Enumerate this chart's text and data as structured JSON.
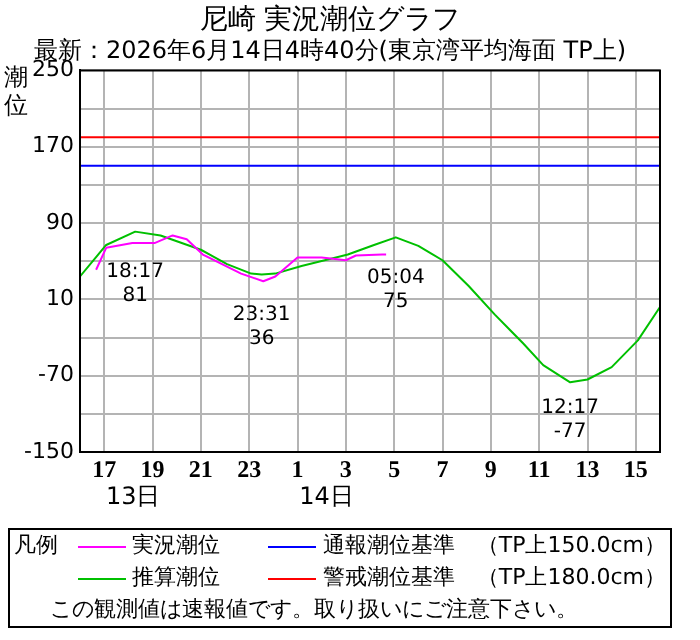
{
  "chart_data": {
    "type": "line",
    "title": "尼崎 実況潮位グラフ",
    "subtitle": "最新：2026年6月14日4時40分(東京湾平均海面 TP上)",
    "ylabel": "潮位",
    "xlim": [
      "2026-06-13T16:00",
      "2026-06-14T16:00"
    ],
    "legend_title": "凡例",
    "xticks": [
      {
        "value": "2026-06-13T17:00",
        "label": "17"
      },
      {
        "value": "2026-06-13T19:00",
        "label": "19"
      },
      {
        "value": "2026-06-13T21:00",
        "label": "21"
      },
      {
        "value": "2026-06-13T23:00",
        "label": "23"
      },
      {
        "value": "2026-06-14T01:00",
        "label": "1"
      },
      {
        "value": "2026-06-14T03:00",
        "label": "3"
      },
      {
        "value": "2026-06-14T05:00",
        "label": "5"
      },
      {
        "value": "2026-06-14T07:00",
        "label": "7"
      },
      {
        "value": "2026-06-14T09:00",
        "label": "9"
      },
      {
        "value": "2026-06-14T11:00",
        "label": "11"
      },
      {
        "value": "2026-06-14T13:00",
        "label": "13"
      },
      {
        "value": "2026-06-14T15:00",
        "label": "15"
      }
    ],
    "ylim": [
      -150,
      250
    ],
    "yticks": [
      -150,
      {
        "value": -110,
        "label": null
      },
      -70,
      {
        "value": -30,
        "label": null
      },
      10,
      {
        "value": 50,
        "label": null
      },
      90,
      {
        "value": 130,
        "label": null
      },
      170,
      {
        "value": 210,
        "label": null
      },
      250
    ],
    "grid": true,
    "legend": "bottom",
    "marker": "none",
    "line_style": "solid",
    "series": [
      {
        "name": "実況潮位",
        "color": "#ff00ff",
        "x": [
          "2026-06-13T16:40",
          "2026-06-13T17:05",
          "2026-06-13T18:10",
          "2026-06-13T19:05",
          "2026-06-13T19:50",
          "2026-06-13T20:25",
          "2026-06-13T21:05",
          "2026-06-13T22:40",
          "2026-06-13T23:35",
          "2026-06-14T00:05",
          "2026-06-14T01:00",
          "2026-06-14T02:00",
          "2026-06-14T03:00",
          "2026-06-14T03:25",
          "2026-06-14T04:30",
          "2026-06-14T04:40"
        ],
        "values": [
          41,
          64,
          69,
          69,
          77,
          73,
          57,
          37,
          29,
          34,
          54,
          54,
          51,
          56,
          57,
          57
        ]
      },
      {
        "name": "推算潮位",
        "color": "#00c000",
        "x": [
          "2026-06-13T16:00",
          "2026-06-13T17:05",
          "2026-06-13T18:17",
          "2026-06-13T19:20",
          "2026-06-13T21:00",
          "2026-06-13T22:05",
          "2026-06-13T23:05",
          "2026-06-13T23:31",
          "2026-06-14T00:05",
          "2026-06-14T01:10",
          "2026-06-14T03:05",
          "2026-06-14T04:10",
          "2026-06-14T05:04",
          "2026-06-14T06:00",
          "2026-06-14T07:00",
          "2026-06-14T08:05",
          "2026-06-14T09:10",
          "2026-06-14T10:20",
          "2026-06-14T11:10",
          "2026-06-14T12:17",
          "2026-06-14T13:00",
          "2026-06-14T14:00",
          "2026-06-14T15:05",
          "2026-06-14T16:00"
        ],
        "values": [
          34,
          67,
          81,
          77,
          62,
          47,
          37,
          36,
          37,
          45,
          57,
          67,
          75,
          66,
          51,
          24,
          -6,
          -36,
          -59,
          -77,
          -74,
          -61,
          -33,
          2
        ]
      }
    ],
    "ref_lines": [
      {
        "axis": "y",
        "value": 150,
        "label": "通報潮位基準　（TP上150.0cm）",
        "color": "#0000ff"
      },
      {
        "axis": "y",
        "value": 180,
        "label": "警戒潮位基準　（TP上180.0cm）",
        "color": "#ff0000"
      }
    ],
    "annotations": [
      {
        "text": "18:17\n81",
        "x": "2026-06-13T18:17",
        "y": 81
      },
      {
        "text": "23:31\n36",
        "x": "2026-06-13T23:31",
        "y": 36
      },
      {
        "text": "05:04\n75",
        "x": "2026-06-14T05:04",
        "y": 75
      },
      {
        "text": "12:17\n-77",
        "x": "2026-06-14T12:17",
        "y": -77
      },
      "13日",
      "14日",
      "この観測値は速報値です。取り扱いにご注意下さい。"
    ]
  }
}
